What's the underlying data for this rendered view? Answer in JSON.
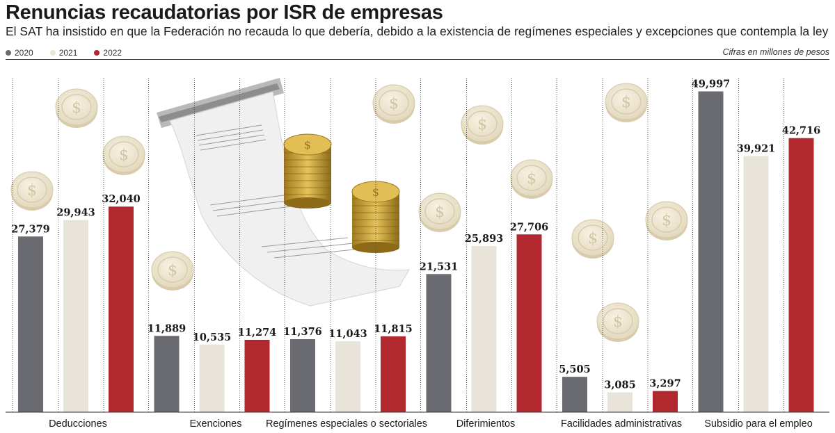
{
  "header": {
    "title": "Renuncias recaudatorias por ISR de empresas",
    "subtitle": "El SAT ha insistido en que la Federación no recauda lo que debería, debido a la existencia de regímenes especiales y excepciones que contempla la ley",
    "units": "Cifras en millones de pesos"
  },
  "legend": [
    {
      "label": "2020",
      "color": "#6a6b70"
    },
    {
      "label": "2021",
      "color": "#e8e4da"
    },
    {
      "label": "2022",
      "color": "#b1282e"
    }
  ],
  "chart_data": {
    "type": "bar",
    "title": "Renuncias recaudatorias por ISR de empresas",
    "categories": [
      "Deducciones",
      "Exenciones",
      "Regímenes especiales o sectoriales",
      "Diferimientos",
      "Facilidades administrativas",
      "Subsidio para el empleo"
    ],
    "series": [
      {
        "name": "2020",
        "color": "#6a6b70",
        "values": [
          27379,
          11889,
          11376,
          21531,
          5505,
          49997
        ],
        "labels": [
          "27,379",
          "11,889",
          "11,376",
          "21,531",
          "5,505",
          "49,997"
        ]
      },
      {
        "name": "2021",
        "color": "#e8e4da",
        "values": [
          29943,
          10535,
          11043,
          25893,
          3085,
          39921
        ],
        "labels": [
          "29,943",
          "10,535",
          "11,043",
          "25,893",
          "3,085",
          "39,921"
        ]
      },
      {
        "name": "2022",
        "color": "#b1282e",
        "values": [
          32040,
          11274,
          11815,
          27706,
          3297,
          42716
        ],
        "labels": [
          "32,040",
          "11,274",
          "11,815",
          "27,706",
          "3,297",
          "42,716"
        ]
      }
    ],
    "ylim": [
      0,
      52000
    ],
    "grid": false,
    "legend_position": "top-left"
  },
  "decor": {
    "coin_icon": "coin-icon",
    "receipt_icon": "receipt-icon",
    "coin_color": "#f1ead6"
  }
}
